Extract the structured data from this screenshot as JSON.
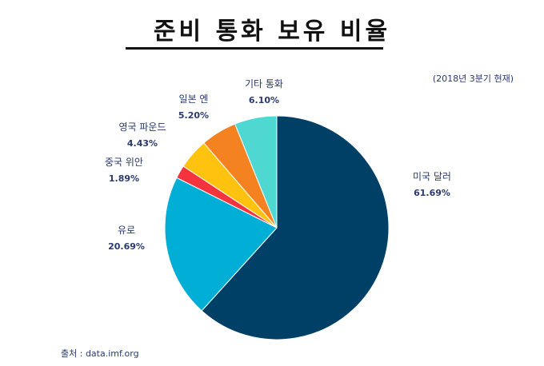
{
  "title": "준비 통화 보유 비율",
  "subtitle": "(2018년 3분기 현재)",
  "source": "출처  : data.imf.org",
  "chart_data": {
    "type": "pie",
    "title": "준비 통화 보유 비율",
    "subtitle": "(2018년 3분기 현재)",
    "slices": [
      {
        "name": "미국 달러",
        "value": 61.69,
        "label": "61.69%",
        "color": "#003f66"
      },
      {
        "name": "유로",
        "value": 20.69,
        "label": "20.69%",
        "color": "#00aed6"
      },
      {
        "name": "중국 위안",
        "value": 1.89,
        "label": "1.89%",
        "color": "#f5333f"
      },
      {
        "name": "영국 파운드",
        "value": 4.43,
        "label": "4.43%",
        "color": "#ffc20e"
      },
      {
        "name": "일본 엔",
        "value": 5.2,
        "label": "5.20%",
        "color": "#f58220"
      },
      {
        "name": "기타 통화",
        "value": 6.1,
        "label": "6.10%",
        "color": "#4fd8d2"
      }
    ]
  }
}
